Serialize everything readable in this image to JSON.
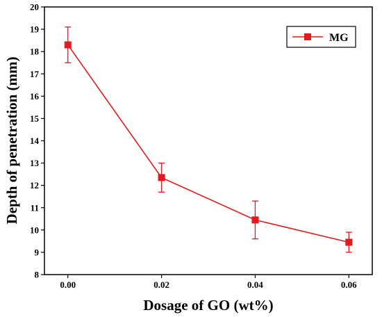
{
  "chart_data": {
    "type": "line",
    "xlabel": "Dosage of GO (wt%)",
    "ylabel": "Depth of penetration (mm)",
    "xlim": [
      -0.005,
      0.065
    ],
    "ylim": [
      8,
      20
    ],
    "x_ticks": [
      "0.00",
      "0.02",
      "0.04",
      "0.06"
    ],
    "x_tick_values": [
      0.0,
      0.02,
      0.04,
      0.06
    ],
    "y_ticks": [
      "8",
      "9",
      "10",
      "11",
      "12",
      "13",
      "14",
      "15",
      "16",
      "17",
      "18",
      "19",
      "20"
    ],
    "y_tick_values": [
      8,
      9,
      10,
      11,
      12,
      13,
      14,
      15,
      16,
      17,
      18,
      19,
      20
    ],
    "grid": false,
    "legend_position": "top-right",
    "series": [
      {
        "name": "MG",
        "color": "#e41a1c",
        "marker": "square",
        "x": [
          0.0,
          0.02,
          0.04,
          0.06
        ],
        "y": [
          18.3,
          12.35,
          10.45,
          9.45
        ],
        "error_low": [
          17.5,
          11.7,
          9.6,
          9.0
        ],
        "error_high": [
          19.1,
          13.0,
          11.3,
          9.9
        ]
      }
    ]
  }
}
